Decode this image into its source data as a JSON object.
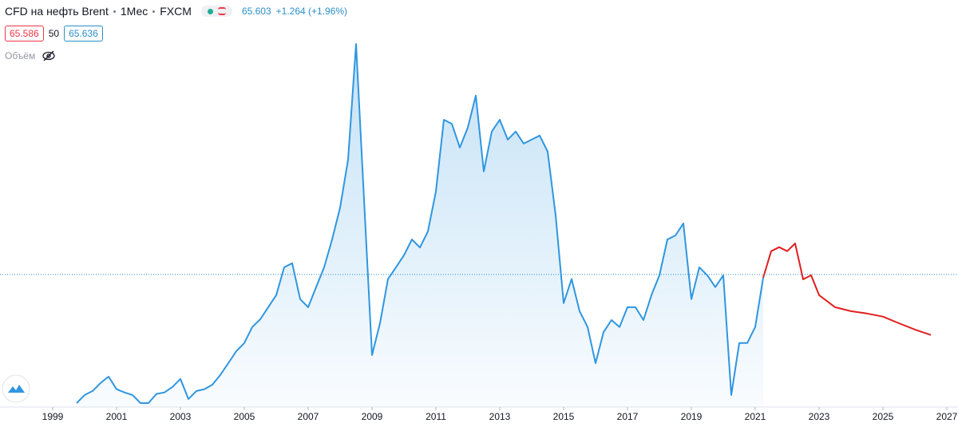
{
  "header": {
    "symbol": "CFD на нефть Brent",
    "interval": "1Мес",
    "exchange": "FXCM",
    "last": 65.603,
    "change": "+1.264 (+1.96%)",
    "bid": 65.586,
    "spread": 50,
    "ask": 65.636,
    "volume_label": "Объём"
  },
  "chart_data": {
    "type": "area",
    "x": [
      1999.75,
      2000.0,
      2000.25,
      2000.5,
      2000.75,
      2001.0,
      2001.25,
      2001.5,
      2001.75,
      2002.0,
      2002.25,
      2002.5,
      2002.75,
      2003.0,
      2003.25,
      2003.5,
      2003.75,
      2004.0,
      2004.25,
      2004.5,
      2004.75,
      2005.0,
      2005.25,
      2005.5,
      2005.75,
      2006.0,
      2006.25,
      2006.5,
      2006.75,
      2007.0,
      2007.25,
      2007.5,
      2007.75,
      2008.0,
      2008.25,
      2008.5,
      2008.75,
      2009.0,
      2009.25,
      2009.5,
      2009.75,
      2010.0,
      2010.25,
      2010.5,
      2010.75,
      2011.0,
      2011.25,
      2011.5,
      2011.75,
      2012.0,
      2012.25,
      2012.5,
      2012.75,
      2013.0,
      2013.25,
      2013.5,
      2013.75,
      2014.0,
      2014.25,
      2014.5,
      2014.75,
      2015.0,
      2015.25,
      2015.5,
      2015.75,
      2016.0,
      2016.25,
      2016.5,
      2016.75,
      2017.0,
      2017.25,
      2017.5,
      2017.75,
      2018.0,
      2018.25,
      2018.5,
      2018.75,
      2019.0,
      2019.25,
      2019.5,
      2019.75,
      2020.0,
      2020.25,
      2020.5,
      2020.75,
      2021.0,
      2021.25,
      2021.5,
      2021.75,
      2022.0,
      2022.25,
      2022.5,
      2022.75,
      2023.0,
      2023.5,
      2024.0,
      2024.5,
      2025.0,
      2025.5,
      2026.0,
      2026.5
    ],
    "series": [
      {
        "color": "#2f96e0",
        "area": true,
        "values": [
          20.8,
          23.6,
          25.0,
          27.8,
          30.0,
          25.6,
          24.5,
          23.6,
          20.8,
          20.8,
          24.0,
          24.5,
          26.4,
          29.2,
          22.2,
          25.0,
          25.6,
          27.2,
          30.6,
          34.7,
          38.9,
          41.7,
          47.3,
          50.0,
          54.2,
          58.4,
          68.1,
          69.5,
          57.0,
          54.2,
          61.2,
          68.1,
          77.8,
          88.9,
          105.6,
          145.9,
          91.7,
          37.5,
          48.6,
          64.0,
          68.1,
          72.3,
          77.8,
          75.0,
          80.6,
          94.5,
          119.5,
          118.1,
          109.8,
          116.8,
          127.9,
          101.5,
          115.4,
          119.5,
          112.6,
          115.4,
          111.2,
          112.6,
          114.0,
          108.4,
          86.2,
          55.6,
          64.0,
          52.8,
          47.3,
          34.7,
          45.5,
          49.7,
          47.3,
          54.2,
          54.2,
          49.7,
          58.4,
          65.3,
          77.8,
          79.2,
          83.4,
          57.0,
          68.1,
          65.3,
          61.2,
          65.3,
          23.6,
          41.7,
          41.7,
          47.3,
          64.5,
          null,
          null,
          null,
          null,
          null,
          null,
          null,
          null,
          null,
          null,
          null,
          null,
          null,
          null
        ]
      },
      {
        "color": "#e01f1f",
        "area": false,
        "values": [
          null,
          null,
          null,
          null,
          null,
          null,
          null,
          null,
          null,
          null,
          null,
          null,
          null,
          null,
          null,
          null,
          null,
          null,
          null,
          null,
          null,
          null,
          null,
          null,
          null,
          null,
          null,
          null,
          null,
          null,
          null,
          null,
          null,
          null,
          null,
          null,
          null,
          null,
          null,
          null,
          null,
          null,
          null,
          null,
          null,
          null,
          null,
          null,
          null,
          null,
          null,
          null,
          null,
          null,
          null,
          null,
          null,
          null,
          null,
          null,
          null,
          null,
          null,
          null,
          null,
          null,
          null,
          null,
          null,
          null,
          null,
          null,
          null,
          null,
          null,
          null,
          null,
          null,
          null,
          null,
          null,
          null,
          null,
          null,
          null,
          null,
          64.5,
          73.7,
          75.1,
          73.7,
          76.4,
          63.9,
          65.3,
          58.4,
          54.2,
          52.8,
          52.0,
          50.9,
          48.6,
          46.4,
          44.5
        ]
      }
    ],
    "xlim": [
      1997.35,
      2027.35
    ],
    "xticks": [
      1999,
      2001,
      2003,
      2005,
      2007,
      2009,
      2011,
      2013,
      2015,
      2017,
      2019,
      2021,
      2023,
      2025,
      2027
    ],
    "ylim": [
      19.4,
      150.1
    ]
  }
}
